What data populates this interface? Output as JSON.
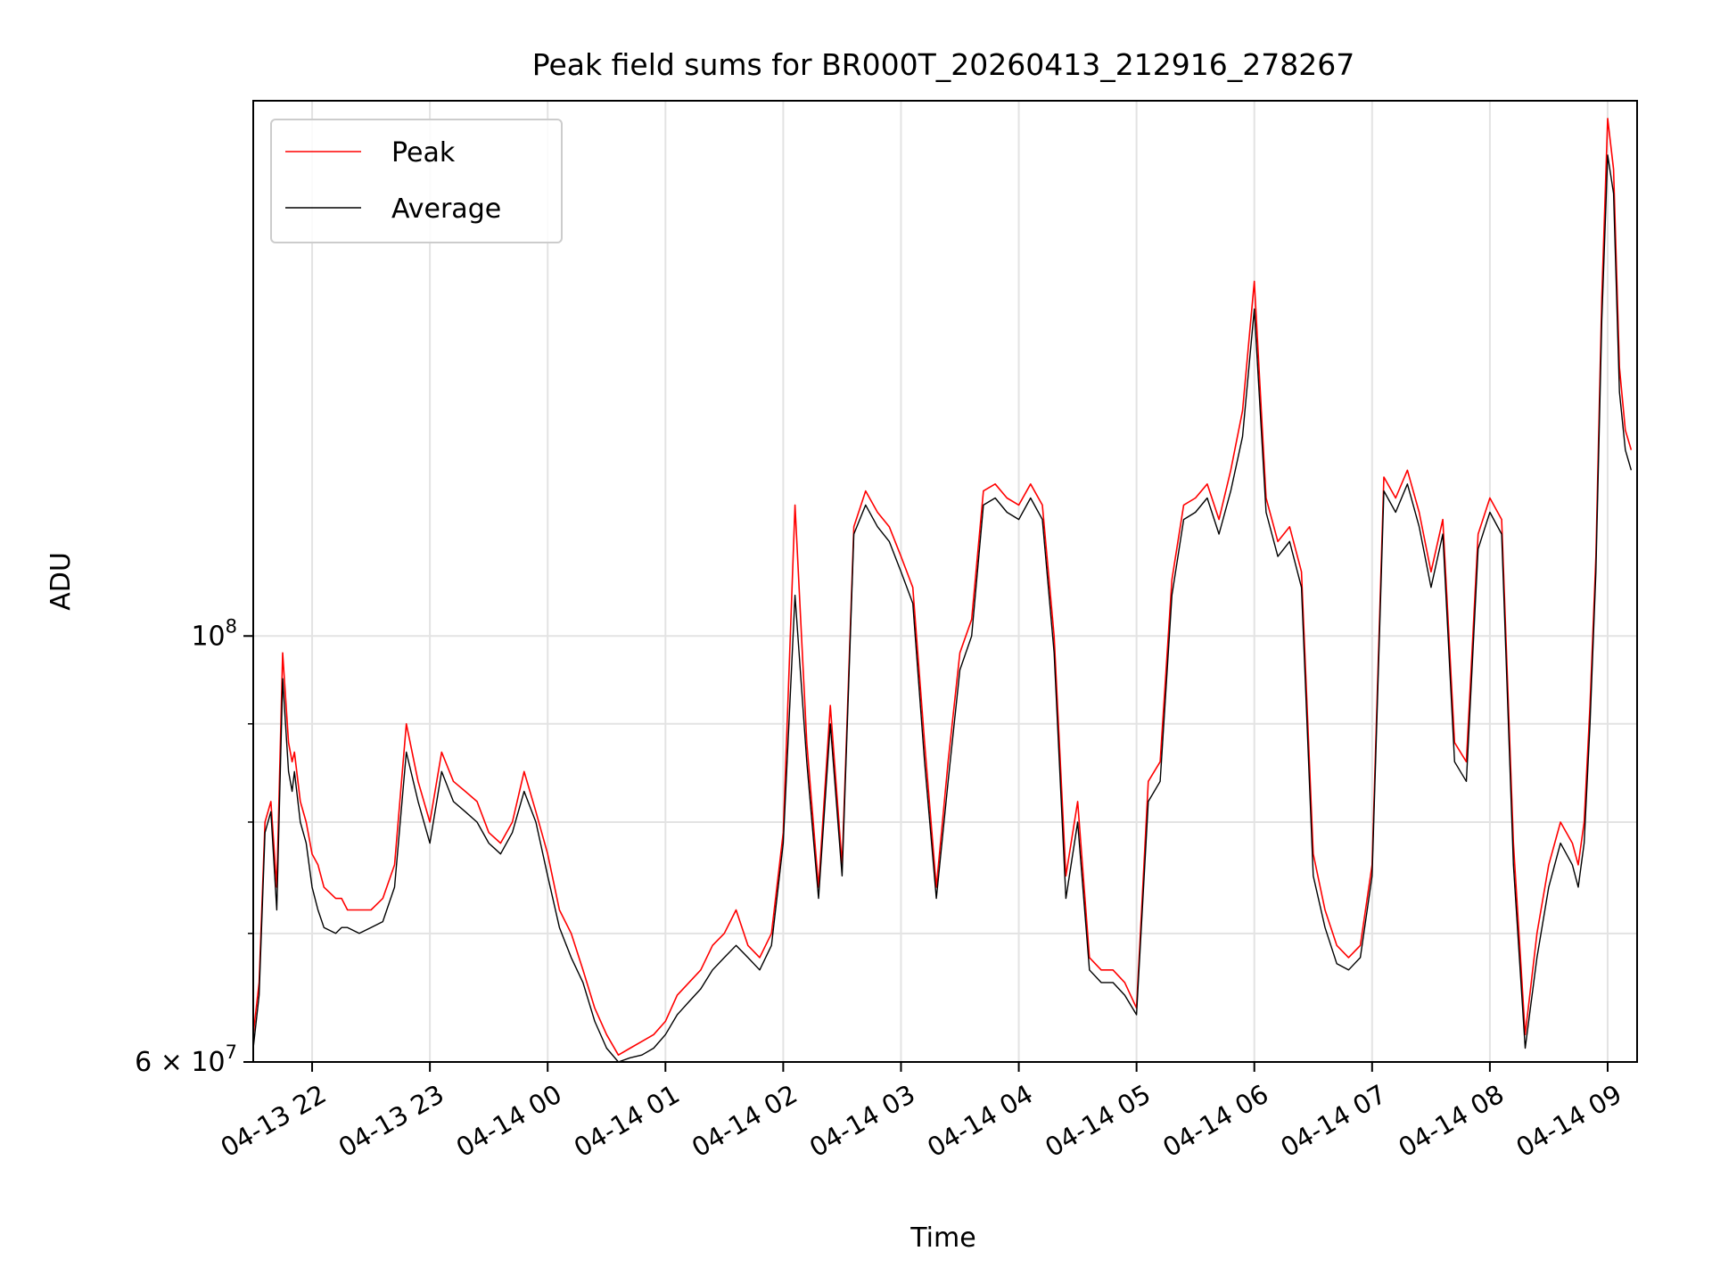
{
  "chart_data": {
    "type": "line",
    "title": "Peak field sums for BR000T_20260413_212916_278267",
    "xlabel": "Time",
    "ylabel": "ADU",
    "yscale": "log",
    "ylim": [
      60000000,
      190000000
    ],
    "xlim_hours": [
      0.0,
      11.75
    ],
    "grid": true,
    "legend_position": "top-left",
    "x_tick_labels": [
      "04-13 22",
      "04-13 23",
      "04-14 00",
      "04-14 01",
      "04-14 02",
      "04-14 03",
      "04-14 04",
      "04-14 05",
      "04-14 06",
      "04-14 07",
      "04-14 08",
      "04-14 09"
    ],
    "x_tick_hours": [
      0.5,
      1.5,
      2.5,
      3.5,
      4.5,
      5.5,
      6.5,
      7.5,
      8.5,
      9.5,
      10.5,
      11.5
    ],
    "y_tick_labels": [
      {
        "base": "10",
        "exp": "8",
        "value": 100000000
      },
      {
        "base": "6 × 10",
        "exp": "7",
        "value": 60000000
      }
    ],
    "y_minor_ticks": [
      70000000,
      80000000,
      90000000
    ],
    "x_hours": [
      0.0,
      0.05,
      0.1,
      0.15,
      0.2,
      0.25,
      0.3,
      0.33,
      0.35,
      0.4,
      0.45,
      0.5,
      0.55,
      0.6,
      0.7,
      0.75,
      0.8,
      0.9,
      1.0,
      1.1,
      1.2,
      1.3,
      1.4,
      1.5,
      1.6,
      1.7,
      1.8,
      1.9,
      2.0,
      2.1,
      2.2,
      2.3,
      2.4,
      2.5,
      2.6,
      2.7,
      2.8,
      2.9,
      3.0,
      3.1,
      3.2,
      3.3,
      3.4,
      3.5,
      3.6,
      3.7,
      3.8,
      3.9,
      4.0,
      4.1,
      4.2,
      4.3,
      4.4,
      4.5,
      4.6,
      4.7,
      4.8,
      4.9,
      5.0,
      5.1,
      5.2,
      5.3,
      5.4,
      5.5,
      5.6,
      5.7,
      5.8,
      5.9,
      6.0,
      6.1,
      6.2,
      6.3,
      6.4,
      6.5,
      6.6,
      6.7,
      6.8,
      6.9,
      7.0,
      7.1,
      7.2,
      7.3,
      7.4,
      7.5,
      7.6,
      7.7,
      7.8,
      7.9,
      8.0,
      8.1,
      8.2,
      8.3,
      8.4,
      8.5,
      8.6,
      8.7,
      8.8,
      8.9,
      9.0,
      9.1,
      9.2,
      9.3,
      9.4,
      9.5,
      9.6,
      9.7,
      9.8,
      9.9,
      10.0,
      10.1,
      10.2,
      10.3,
      10.4,
      10.5,
      10.6,
      10.7,
      10.8,
      10.9,
      11.0,
      11.1,
      11.2,
      11.25,
      11.3,
      11.35,
      11.4,
      11.45,
      11.5,
      11.55,
      11.6,
      11.65,
      11.7,
      11.75
    ],
    "series": [
      {
        "name": "Peak",
        "color": "#ff0000",
        "values": [
          62000000,
          66000000,
          80000000,
          82000000,
          74000000,
          98000000,
          88000000,
          86000000,
          87000000,
          82000000,
          80000000,
          77000000,
          76000000,
          74000000,
          73000000,
          73000000,
          72000000,
          72000000,
          72000000,
          73000000,
          76000000,
          90000000,
          84000000,
          80000000,
          87000000,
          84000000,
          83000000,
          82000000,
          79000000,
          78000000,
          80000000,
          85000000,
          81000000,
          77000000,
          72000000,
          70000000,
          67000000,
          64000000,
          62000000,
          60500000,
          61000000,
          61500000,
          62000000,
          63000000,
          65000000,
          66000000,
          67000000,
          69000000,
          70000000,
          72000000,
          69000000,
          68000000,
          70000000,
          79000000,
          117000000,
          88000000,
          74000000,
          92000000,
          76000000,
          114000000,
          119000000,
          116000000,
          114000000,
          110000000,
          106000000,
          88000000,
          74000000,
          86000000,
          98000000,
          102000000,
          119000000,
          120000000,
          118000000,
          117000000,
          120000000,
          117000000,
          100000000,
          75000000,
          82000000,
          68000000,
          67000000,
          67000000,
          66000000,
          64000000,
          84000000,
          86000000,
          107000000,
          117000000,
          118000000,
          120000000,
          115000000,
          122000000,
          131000000,
          153000000,
          118000000,
          112000000,
          114000000,
          108000000,
          77000000,
          72000000,
          69000000,
          68000000,
          69000000,
          76000000,
          121000000,
          118000000,
          122000000,
          116000000,
          108000000,
          115000000,
          88000000,
          86000000,
          113000000,
          118000000,
          115000000,
          78000000,
          62000000,
          70000000,
          76000000,
          80000000,
          78000000,
          76000000,
          80000000,
          92000000,
          110000000,
          150000000,
          186000000,
          175000000,
          138000000,
          128000000,
          125000000
        ]
      },
      {
        "name": "Average",
        "color": "#000000",
        "values": [
          61000000,
          65000000,
          79000000,
          81000000,
          72000000,
          95000000,
          85000000,
          83000000,
          85000000,
          80000000,
          78000000,
          74000000,
          72000000,
          70500000,
          70000000,
          70500000,
          70500000,
          70000000,
          70500000,
          71000000,
          74000000,
          87000000,
          82000000,
          78000000,
          85000000,
          82000000,
          81000000,
          80000000,
          78000000,
          77000000,
          79000000,
          83000000,
          80000000,
          75000000,
          70500000,
          68000000,
          66000000,
          63000000,
          61000000,
          60000000,
          60300000,
          60500000,
          61000000,
          62000000,
          63500000,
          64500000,
          65500000,
          67000000,
          68000000,
          69000000,
          68000000,
          67000000,
          69000000,
          78000000,
          105000000,
          86000000,
          73000000,
          90000000,
          75000000,
          113000000,
          117000000,
          114000000,
          112000000,
          108000000,
          104000000,
          86000000,
          73000000,
          84000000,
          96000000,
          100000000,
          117000000,
          118000000,
          116000000,
          115000000,
          118000000,
          115000000,
          98000000,
          73000000,
          80000000,
          67000000,
          66000000,
          66000000,
          65000000,
          63500000,
          82000000,
          84000000,
          105000000,
          115000000,
          116000000,
          118000000,
          113000000,
          119000000,
          127000000,
          148000000,
          116000000,
          110000000,
          112000000,
          106000000,
          75000000,
          70500000,
          67500000,
          67000000,
          68000000,
          75000000,
          119000000,
          116000000,
          120000000,
          114000000,
          106000000,
          113000000,
          86000000,
          84000000,
          111000000,
          116000000,
          113000000,
          76000000,
          61000000,
          68000000,
          74000000,
          78000000,
          76000000,
          74000000,
          78000000,
          90000000,
          108000000,
          146000000,
          178000000,
          170000000,
          134000000,
          125000000,
          122000000
        ]
      }
    ]
  }
}
